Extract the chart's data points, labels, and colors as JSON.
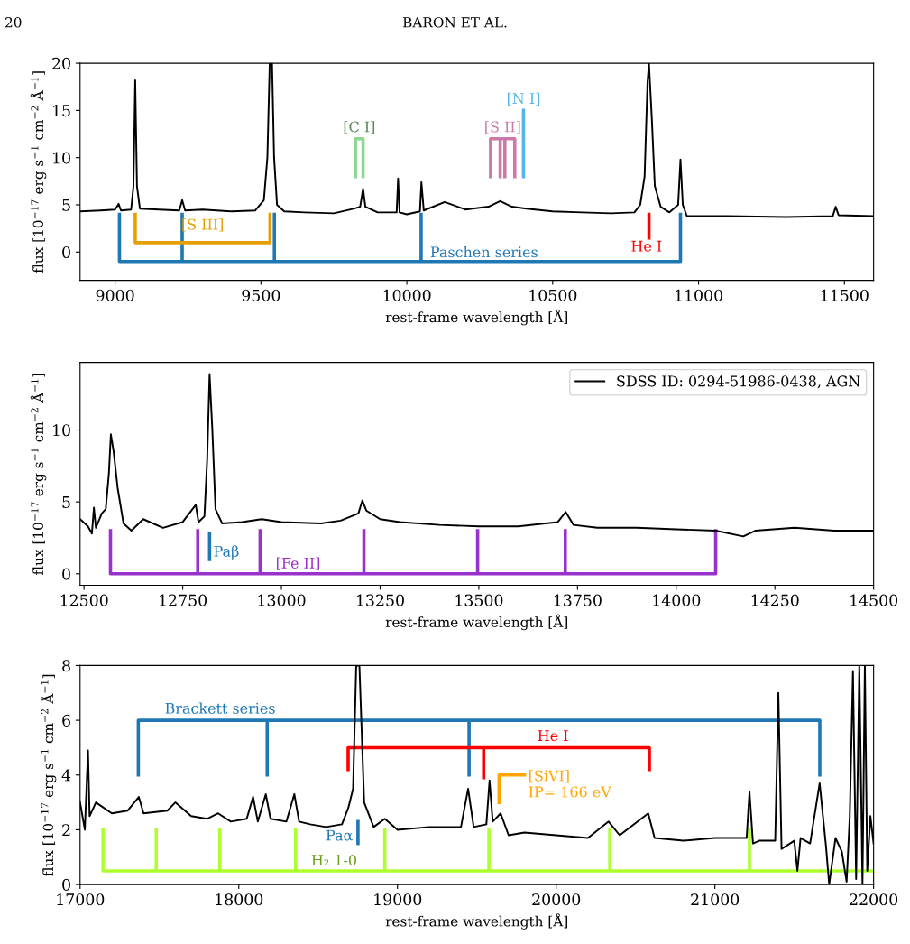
{
  "chart_data": [
    {
      "type": "line",
      "annotations": [
        "20",
        "BARON ET AL."
      ],
      "xlabel": "rest-frame wavelength [Å]",
      "ylabel": "flux [10$^{−17}$ erg s$^{−1}$ cm$^{−2}$ Å$^{−1}$]",
      "xlim": [
        8880,
        11600
      ],
      "ylim": [
        -3,
        20
      ],
      "xticks": [
        9000,
        9500,
        10000,
        10500,
        11000,
        11500
      ],
      "yticks": [
        0,
        5,
        10,
        15,
        20
      ],
      "grid": false,
      "legend": false,
      "series": [
        {
          "color": "#000000",
          "x": [
            8880,
            8950,
            9000,
            9012,
            9020,
            9055,
            9063,
            9069,
            9075,
            9085,
            9150,
            9220,
            9230,
            9240,
            9300,
            9400,
            9480,
            9510,
            9522,
            9530,
            9538,
            9545,
            9555,
            9580,
            9650,
            9750,
            9820,
            9840,
            9850,
            9858,
            9900,
            9965,
            9970,
            9975,
            10000,
            10045,
            10050,
            10058,
            10130,
            10200,
            10280,
            10320,
            10360,
            10410,
            10500,
            10600,
            10700,
            10780,
            10800,
            10815,
            10825,
            10830,
            10840,
            10850,
            10870,
            10900,
            10930,
            10938,
            10946,
            10960,
            11100,
            11300,
            11460,
            11470,
            11480,
            11600
          ],
          "values": [
            4.3,
            4.4,
            4.5,
            5.1,
            4.4,
            4.5,
            7,
            18.2,
            7,
            4.6,
            4.5,
            4.4,
            5.5,
            4.4,
            4.5,
            4.3,
            4.4,
            5.5,
            10,
            20,
            20,
            10,
            5,
            4.3,
            4.2,
            4.1,
            4.6,
            4.8,
            6.7,
            4.8,
            4.2,
            4.2,
            7.8,
            4.2,
            4.0,
            4.3,
            7.4,
            4.4,
            5.3,
            4.5,
            4.8,
            5.4,
            4.8,
            4.6,
            4.3,
            4.2,
            4.1,
            4.2,
            5,
            8,
            18,
            20,
            14,
            7,
            4.8,
            4.2,
            5,
            9.8,
            5,
            3.8,
            3.8,
            3.7,
            3.8,
            4.8,
            3.9,
            3.8
          ]
        },
        {
          "name": "Paschen series",
          "color": "#1f77b4",
          "x": [
            9015,
            9015,
            10938,
            10938,
            null,
            9230,
            9230,
            null,
            9546,
            9546,
            null,
            10049,
            10049
          ],
          "values": [
            4,
            -1,
            -1,
            4,
            null,
            -1,
            4,
            null,
            -1,
            4,
            null,
            -1,
            4
          ]
        },
        {
          "name": "[S III]",
          "color": "#e69f00",
          "x": [
            9069,
            9069,
            9531,
            9531
          ],
          "values": [
            4,
            1,
            1,
            4
          ]
        },
        {
          "name": "He I",
          "color": "#ff0000",
          "x": [
            10830,
            10830
          ],
          "values": [
            4,
            1.5
          ]
        },
        {
          "name": "[C I]",
          "color": "#8fd68f",
          "x": [
            9824,
            9824,
            9850,
            9850
          ],
          "values": [
            8,
            12,
            12,
            8
          ]
        },
        {
          "name": "[S II]",
          "color": "#cc79a7",
          "x": [
            10287,
            10287,
            10370,
            10370,
            null,
            10320,
            10320,
            null,
            10336,
            10336
          ],
          "values": [
            8,
            12,
            12,
            8,
            null,
            8,
            12,
            null,
            8,
            12
          ]
        },
        {
          "name": "[N I]",
          "color": "#56b4e9",
          "x": [
            10400,
            10400
          ],
          "values": [
            8,
            15
          ]
        }
      ]
    },
    {
      "type": "line",
      "xlabel": "rest-frame wavelength [Å]",
      "ylabel": "flux [10$^{−17}$ erg s$^{−1}$ cm$^{−2}$ Å$^{−1}$]",
      "xlim": [
        12490,
        14500
      ],
      "ylim": [
        -0.8,
        14.7
      ],
      "xticks": [
        12500,
        12750,
        13000,
        13250,
        13500,
        13750,
        14000,
        14250,
        14500
      ],
      "yticks": [
        0,
        5,
        10
      ],
      "grid": false,
      "legend": "top right",
      "series": [
        {
          "name": "SDSS ID: 0294-51986-0438, AGN",
          "color": "#000000",
          "x": [
            12490,
            12510,
            12520,
            12525,
            12530,
            12545,
            12555,
            12563,
            12568,
            12575,
            12585,
            12600,
            12620,
            12650,
            12700,
            12750,
            12783,
            12790,
            12805,
            12812,
            12818,
            12825,
            12833,
            12850,
            12900,
            12950,
            13000,
            13100,
            13150,
            13195,
            13205,
            13215,
            13250,
            13300,
            13400,
            13500,
            13600,
            13700,
            13720,
            13740,
            13800,
            13900,
            14000,
            14100,
            14170,
            14200,
            14300,
            14400,
            14500
          ],
          "values": [
            3.8,
            3.3,
            2.8,
            4.6,
            3.2,
            4.2,
            4.5,
            7,
            9.7,
            8.5,
            6,
            3.5,
            3.0,
            3.8,
            3.2,
            3.6,
            4.8,
            3.6,
            4,
            8,
            13.9,
            10,
            4.5,
            3.5,
            3.6,
            3.8,
            3.6,
            3.5,
            3.7,
            4.2,
            5.1,
            4.4,
            3.8,
            3.6,
            3.4,
            3.3,
            3.3,
            3.6,
            4.3,
            3.4,
            3.2,
            3.2,
            3.1,
            3.0,
            2.6,
            3.0,
            3.2,
            3.0,
            3.0
          ]
        },
        {
          "name": "[Fe II]",
          "color": "#9932cc",
          "x": [
            12567,
            12567,
            14100,
            14100,
            null,
            12788,
            12788,
            null,
            12946,
            12946,
            null,
            13209,
            13209,
            null,
            13497,
            13497,
            null,
            13719,
            13719
          ],
          "values": [
            3,
            0,
            0,
            3,
            null,
            0,
            3,
            null,
            0,
            3,
            null,
            0,
            3,
            null,
            0,
            3,
            null,
            0,
            3
          ]
        },
        {
          "name": "Paβ",
          "color": "#1f77b4",
          "x": [
            12818,
            12818
          ],
          "values": [
            2.8,
            1
          ]
        }
      ]
    },
    {
      "type": "line",
      "xlabel": "rest-frame wavelength [Å]",
      "ylabel": "flux [10$^{−17}$ erg s$^{−1}$ cm$^{−2}$ Å$^{−1}$]",
      "xlim": [
        17000,
        22000
      ],
      "ylim": [
        0,
        8
      ],
      "xticks": [
        17000,
        18000,
        19000,
        20000,
        21000,
        22000
      ],
      "yticks": [
        0,
        2,
        4,
        6,
        8
      ],
      "grid": false,
      "legend": false,
      "series": [
        {
          "color": "#000000",
          "x": [
            17000,
            17030,
            17050,
            17060,
            17100,
            17200,
            17300,
            17370,
            17400,
            17550,
            17600,
            17700,
            17800,
            17870,
            17950,
            18050,
            18090,
            18120,
            18170,
            18200,
            18300,
            18350,
            18380,
            18450,
            18550,
            18650,
            18690,
            18720,
            18740,
            18760,
            18790,
            18850,
            18920,
            19000,
            19200,
            19400,
            19445,
            19480,
            19560,
            19580,
            19600,
            19650,
            19700,
            19800,
            20000,
            20200,
            20330,
            20400,
            20580,
            20620,
            20800,
            21000,
            21200,
            21218,
            21240,
            21280,
            21380,
            21400,
            21420,
            21500,
            21520,
            21540,
            21600,
            21660,
            21700,
            21720,
            21760,
            21800,
            21830,
            21850,
            21870,
            21890,
            21910,
            21930,
            21945,
            21960,
            21980,
            22000
          ],
          "values": [
            3.0,
            2.0,
            4.9,
            2.5,
            3.0,
            2.6,
            2.7,
            3.2,
            2.6,
            2.7,
            3.0,
            2.5,
            2.4,
            2.6,
            2.3,
            2.4,
            3.2,
            2.3,
            3.3,
            2.4,
            2.3,
            3.3,
            2.3,
            2.2,
            2.1,
            2.2,
            2.8,
            3.5,
            8,
            8,
            3.0,
            2.1,
            2.4,
            2.0,
            2.1,
            2.1,
            3.5,
            2.1,
            2.2,
            3.8,
            2.3,
            2.6,
            1.8,
            1.9,
            1.8,
            1.7,
            2.3,
            1.8,
            2.6,
            1.7,
            1.6,
            1.7,
            1.7,
            3.4,
            1.5,
            1.6,
            1.6,
            7.0,
            1.3,
            1.6,
            0.5,
            1.7,
            1.5,
            3.7,
            1.4,
            0,
            1.7,
            1.2,
            0.1,
            2.5,
            7.8,
            0.2,
            8,
            0,
            8,
            0.5,
            2.5,
            1.5
          ]
        },
        {
          "name": "Brackett series",
          "color": "#1f77b4",
          "x": [
            17367,
            17367,
            21661,
            21661,
            null,
            18179,
            18179,
            null,
            19451,
            19451
          ],
          "values": [
            4,
            6,
            6,
            4,
            null,
            4,
            6,
            null,
            4,
            6
          ]
        },
        {
          "name": "He I",
          "color": "#ff0000",
          "x": [
            18689,
            18689,
            20587,
            20587,
            null,
            19543,
            19543
          ],
          "values": [
            4.2,
            5,
            5,
            4.2,
            null,
            3.9,
            5
          ]
        },
        {
          "name": "Paα",
          "color": "#1f77b4",
          "x": [
            18751,
            18751
          ],
          "values": [
            1.5,
            2.3
          ]
        },
        {
          "name": "[SiVI]\nIP= 166 eV",
          "color": "#ffa500",
          "x": [
            19640,
            19640,
            19800
          ],
          "values": [
            3,
            4,
            4
          ]
        },
        {
          "name": "H₂ 1-0",
          "color": "#adff2f",
          "x": [
            17144,
            17144,
            22000,
            null,
            17480,
            17480,
            null,
            17880,
            17880,
            null,
            18358,
            18358,
            null,
            18920,
            18920,
            null,
            19576,
            19576,
            null,
            20338,
            20338,
            null,
            21218,
            21218
          ],
          "values": [
            2,
            0.5,
            0.5,
            null,
            0.5,
            2,
            null,
            0.5,
            2,
            null,
            0.5,
            2,
            null,
            0.5,
            2,
            null,
            0.5,
            2,
            null,
            0.5,
            2,
            null,
            0.5,
            2
          ]
        }
      ]
    }
  ]
}
